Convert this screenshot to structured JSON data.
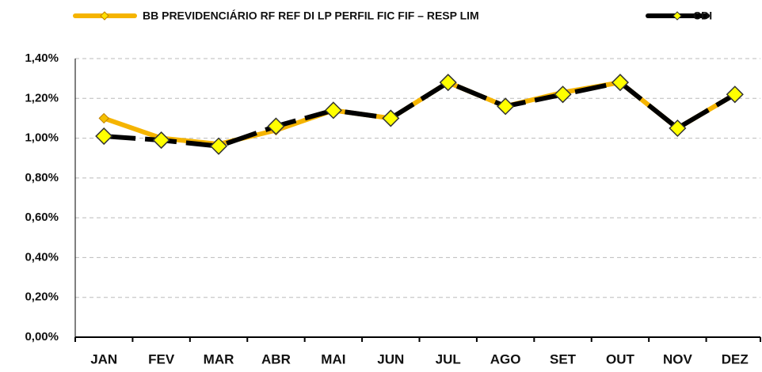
{
  "chart_data": {
    "type": "line",
    "categories": [
      "JAN",
      "FEV",
      "MAR",
      "ABR",
      "MAI",
      "JUN",
      "JUL",
      "AGO",
      "SET",
      "OUT",
      "NOV",
      "DEZ"
    ],
    "series": [
      {
        "name": "BB PREVIDENCIÁRIO RF REF DI LP PERFIL FIC FIF – RESP LIM",
        "color": "#f5b400",
        "values": [
          1.1,
          1.0,
          0.97,
          1.04,
          1.14,
          1.1,
          1.28,
          1.16,
          1.23,
          1.28,
          1.05,
          1.22
        ]
      },
      {
        "name": "CDI",
        "color": "#000000",
        "values": [
          1.01,
          0.99,
          0.96,
          1.06,
          1.14,
          1.1,
          1.28,
          1.16,
          1.22,
          1.28,
          1.05,
          1.22
        ]
      }
    ],
    "ylim": [
      0,
      1.4
    ],
    "yticks": [
      {
        "value": 0,
        "label": "0,00%"
      },
      {
        "value": 0.2,
        "label": "0,20%"
      },
      {
        "value": 0.4,
        "label": "0,40%"
      },
      {
        "value": 0.6,
        "label": "0,60%"
      },
      {
        "value": 0.8,
        "label": "0,80%"
      },
      {
        "value": 1.0,
        "label": "1,00%"
      },
      {
        "value": 1.2,
        "label": "1,20%"
      },
      {
        "value": 1.4,
        "label": "1,40%"
      }
    ],
    "grid": true,
    "legend": "top"
  }
}
